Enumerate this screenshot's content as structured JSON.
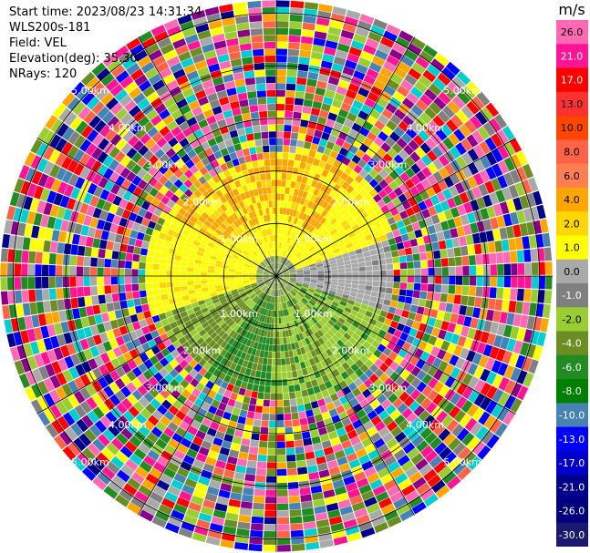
{
  "header": {
    "start_time": "Start time: 2023/08/23 14:31:34",
    "instrument": "WLS200s-181",
    "field": "Field: VEL",
    "elevation": "Elevation(deg): 35.30",
    "nrays": "NRays: 120"
  },
  "chart_data": {
    "type": "heatmap",
    "projection": "polar-ppi",
    "field": "VEL",
    "units": "m/s",
    "nrays": 120,
    "range_rings_km": [
      1.0,
      2.0,
      3.0,
      4.0,
      5.0
    ],
    "ring_labels": [
      "1.00km",
      "2.00km",
      "3.00km",
      "4.00km",
      "5.00km"
    ],
    "colorbar": {
      "title": "m/s",
      "ticks": [
        "26.0",
        "21.0",
        "17.0",
        "13.0",
        "10.0",
        "8.0",
        "6.0",
        "4.0",
        "2.0",
        "1.0",
        "0.0",
        "-1.0",
        "-2.0",
        "-4.0",
        "-6.0",
        "-8.0",
        "-10.0",
        "-13.0",
        "-17.0",
        "-21.0",
        "-26.0",
        "-30.0"
      ],
      "colors": [
        "#ff69b4",
        "#ff1493",
        "#ff0000",
        "#ff3030",
        "#ff4500",
        "#ff6347",
        "#ff7f50",
        "#ffa500",
        "#ffd700",
        "#ffff00",
        "#a9a9a9",
        "#808080",
        "#9acd32",
        "#6b8e23",
        "#228b22",
        "#008000",
        "#4682b4",
        "#0000ff",
        "#0000cd",
        "#00008b",
        "#000080",
        "#191970"
      ]
    },
    "clean_region_km": 2.35,
    "noise_colors": [
      "#ff1493",
      "#ff69b4",
      "#0000ff",
      "#00008b",
      "#ff0000",
      "#ffff00",
      "#ffa500",
      "#9acd32",
      "#228b22",
      "#808080",
      "#a9a9a9",
      "#ff6347",
      "#00ced1",
      "#4682b4",
      "#8b008b",
      "#6b8e23"
    ]
  }
}
